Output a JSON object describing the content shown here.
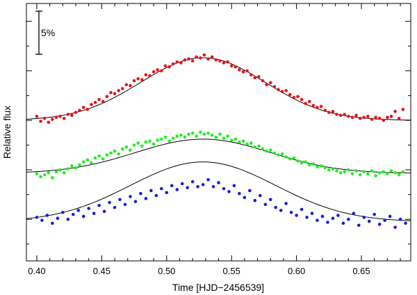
{
  "chart_data": {
    "type": "scatter",
    "title": "",
    "xlabel": "Time [HJD−2456539]",
    "ylabel": "Relative flux",
    "xlim": [
      0.392,
      0.688
    ],
    "ylim": [
      -0.142,
      0.118
    ],
    "x_ticks": [
      0.4,
      0.45,
      0.5,
      0.55,
      0.6,
      0.65
    ],
    "x_tick_labels": [
      "0.40",
      "0.45",
      "0.50",
      "0.55",
      "0.60",
      "0.65"
    ],
    "y_tick_labels_shown": false,
    "grid": false,
    "legend": "none",
    "scale_bar": {
      "label": "5%",
      "size": 0.05
    },
    "colors": {
      "red": "#e8141b",
      "green": "#22ee22",
      "blue": "#1a1ad8",
      "model": "#000000"
    },
    "series": [
      {
        "color": "#e8141b",
        "model": {
          "baseline": 0.0,
          "amplitude": 0.0632,
          "center": 0.528,
          "sigma": 0.048
        },
        "x": [
          0.4,
          0.403,
          0.406,
          0.409,
          0.412,
          0.415,
          0.418,
          0.421,
          0.424,
          0.427,
          0.43,
          0.433,
          0.436,
          0.439,
          0.442,
          0.445,
          0.448,
          0.451,
          0.454,
          0.457,
          0.46,
          0.463,
          0.466,
          0.469,
          0.472,
          0.475,
          0.478,
          0.481,
          0.484,
          0.487,
          0.49,
          0.493,
          0.496,
          0.499,
          0.502,
          0.505,
          0.508,
          0.511,
          0.514,
          0.517,
          0.52,
          0.523,
          0.526,
          0.529,
          0.532,
          0.535,
          0.538,
          0.541,
          0.544,
          0.547,
          0.55,
          0.553,
          0.556,
          0.559,
          0.562,
          0.565,
          0.568,
          0.571,
          0.574,
          0.577,
          0.58,
          0.583,
          0.586,
          0.589,
          0.592,
          0.595,
          0.598,
          0.601,
          0.604,
          0.607,
          0.61,
          0.613,
          0.616,
          0.619,
          0.622,
          0.625,
          0.628,
          0.631,
          0.634,
          0.637,
          0.64,
          0.643,
          0.646,
          0.649,
          0.652,
          0.655,
          0.658,
          0.661,
          0.664,
          0.667,
          0.67,
          0.673,
          0.676,
          0.679,
          0.682
        ],
        "y": [
          0.004,
          -0.001,
          0.002,
          -0.002,
          0.001,
          0.003,
          0.004,
          0.002,
          0.006,
          0.005,
          0.008,
          0.01,
          0.013,
          0.011,
          0.016,
          0.018,
          0.021,
          0.019,
          0.024,
          0.028,
          0.027,
          0.03,
          0.032,
          0.036,
          0.035,
          0.04,
          0.042,
          0.041,
          0.046,
          0.045,
          0.049,
          0.051,
          0.05,
          0.055,
          0.054,
          0.057,
          0.059,
          0.058,
          0.061,
          0.062,
          0.06,
          0.064,
          0.063,
          0.066,
          0.062,
          0.064,
          0.061,
          0.06,
          0.058,
          0.059,
          0.055,
          0.054,
          0.051,
          0.049,
          0.05,
          0.046,
          0.043,
          0.044,
          0.04,
          0.036,
          0.038,
          0.034,
          0.031,
          0.029,
          0.03,
          0.026,
          0.023,
          0.024,
          0.021,
          0.017,
          0.019,
          0.015,
          0.013,
          0.014,
          0.01,
          0.008,
          0.009,
          0.006,
          0.005,
          0.006,
          0.004,
          0.003,
          0.005,
          0.002,
          0.003,
          0.004,
          0.001,
          0.003,
          0.002,
          0.0,
          0.003,
          0.004,
          0.009,
          0.002,
          0.011
        ]
      },
      {
        "color": "#22ee22",
        "model": {
          "baseline": -0.0535,
          "amplitude": 0.0345,
          "center": 0.528,
          "sigma": 0.052
        },
        "x": [
          0.4,
          0.403,
          0.406,
          0.409,
          0.412,
          0.415,
          0.418,
          0.421,
          0.424,
          0.427,
          0.43,
          0.433,
          0.436,
          0.439,
          0.442,
          0.445,
          0.448,
          0.451,
          0.454,
          0.457,
          0.46,
          0.463,
          0.466,
          0.469,
          0.472,
          0.475,
          0.478,
          0.481,
          0.484,
          0.487,
          0.49,
          0.493,
          0.496,
          0.499,
          0.502,
          0.505,
          0.508,
          0.511,
          0.514,
          0.517,
          0.52,
          0.523,
          0.526,
          0.529,
          0.532,
          0.535,
          0.538,
          0.541,
          0.544,
          0.547,
          0.55,
          0.553,
          0.556,
          0.559,
          0.562,
          0.565,
          0.568,
          0.571,
          0.574,
          0.577,
          0.58,
          0.583,
          0.586,
          0.589,
          0.592,
          0.595,
          0.598,
          0.601,
          0.604,
          0.607,
          0.61,
          0.613,
          0.616,
          0.619,
          0.622,
          0.625,
          0.628,
          0.631,
          0.634,
          0.637,
          0.64,
          0.643,
          0.646,
          0.649,
          0.652,
          0.655,
          0.658,
          0.661,
          0.664,
          0.667,
          0.67,
          0.673,
          0.676,
          0.679,
          0.682
        ],
        "y": [
          -0.054,
          -0.057,
          -0.055,
          -0.053,
          -0.058,
          -0.052,
          -0.05,
          -0.053,
          -0.049,
          -0.046,
          -0.048,
          -0.045,
          -0.042,
          -0.04,
          -0.043,
          -0.038,
          -0.036,
          -0.039,
          -0.035,
          -0.033,
          -0.031,
          -0.034,
          -0.029,
          -0.027,
          -0.03,
          -0.025,
          -0.023,
          -0.026,
          -0.022,
          -0.021,
          -0.024,
          -0.02,
          -0.019,
          -0.017,
          -0.021,
          -0.018,
          -0.016,
          -0.015,
          -0.017,
          -0.014,
          -0.013,
          -0.016,
          -0.012,
          -0.014,
          -0.013,
          -0.015,
          -0.017,
          -0.014,
          -0.018,
          -0.016,
          -0.02,
          -0.019,
          -0.022,
          -0.021,
          -0.024,
          -0.023,
          -0.027,
          -0.026,
          -0.029,
          -0.031,
          -0.03,
          -0.033,
          -0.035,
          -0.034,
          -0.037,
          -0.039,
          -0.038,
          -0.041,
          -0.043,
          -0.042,
          -0.045,
          -0.044,
          -0.047,
          -0.046,
          -0.048,
          -0.05,
          -0.049,
          -0.051,
          -0.053,
          -0.052,
          -0.05,
          -0.054,
          -0.051,
          -0.055,
          -0.052,
          -0.054,
          -0.051,
          -0.056,
          -0.053,
          -0.052,
          -0.054,
          -0.051,
          -0.053,
          -0.055,
          -0.052
        ]
      },
      {
        "color": "#1a1ad8",
        "model": {
          "baseline": -0.1025,
          "amplitude": 0.0605,
          "center": 0.528,
          "sigma": 0.056
        },
        "x": [
          0.4,
          0.404,
          0.408,
          0.412,
          0.416,
          0.42,
          0.424,
          0.428,
          0.432,
          0.436,
          0.44,
          0.444,
          0.448,
          0.452,
          0.456,
          0.46,
          0.464,
          0.468,
          0.472,
          0.476,
          0.48,
          0.484,
          0.488,
          0.492,
          0.496,
          0.5,
          0.504,
          0.508,
          0.512,
          0.516,
          0.52,
          0.524,
          0.528,
          0.532,
          0.536,
          0.54,
          0.544,
          0.548,
          0.552,
          0.556,
          0.56,
          0.564,
          0.568,
          0.572,
          0.576,
          0.58,
          0.584,
          0.588,
          0.592,
          0.596,
          0.6,
          0.604,
          0.608,
          0.612,
          0.616,
          0.62,
          0.624,
          0.628,
          0.632,
          0.636,
          0.64,
          0.644,
          0.648,
          0.652,
          0.656,
          0.66,
          0.664,
          0.668,
          0.672,
          0.676,
          0.68,
          0.684
        ],
        "y": [
          -0.098,
          -0.101,
          -0.096,
          -0.104,
          -0.099,
          -0.093,
          -0.1,
          -0.095,
          -0.091,
          -0.097,
          -0.089,
          -0.094,
          -0.086,
          -0.092,
          -0.083,
          -0.088,
          -0.08,
          -0.085,
          -0.077,
          -0.082,
          -0.074,
          -0.079,
          -0.071,
          -0.076,
          -0.069,
          -0.073,
          -0.066,
          -0.07,
          -0.064,
          -0.068,
          -0.062,
          -0.067,
          -0.065,
          -0.06,
          -0.067,
          -0.063,
          -0.069,
          -0.072,
          -0.066,
          -0.074,
          -0.078,
          -0.071,
          -0.081,
          -0.076,
          -0.085,
          -0.08,
          -0.088,
          -0.091,
          -0.084,
          -0.093,
          -0.096,
          -0.09,
          -0.098,
          -0.094,
          -0.101,
          -0.097,
          -0.103,
          -0.099,
          -0.096,
          -0.104,
          -0.1,
          -0.094,
          -0.106,
          -0.098,
          -0.102,
          -0.095,
          -0.105,
          -0.101,
          -0.097,
          -0.108,
          -0.1,
          -0.104
        ]
      }
    ]
  }
}
